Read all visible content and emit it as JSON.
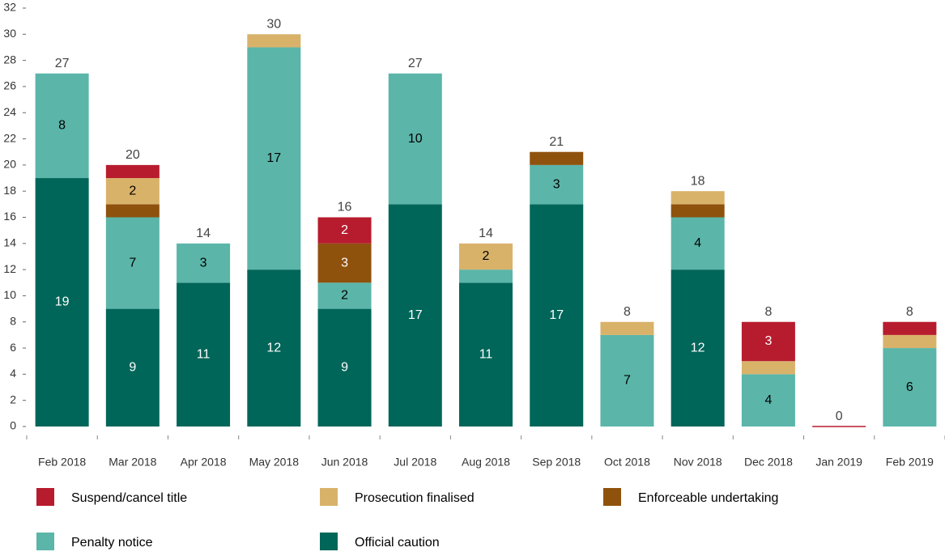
{
  "chart_data": {
    "type": "stacked-bar",
    "categories": [
      "Feb 2018",
      "Mar 2018",
      "Apr 2018",
      "May 2018",
      "Jun 2018",
      "Jul 2018",
      "Aug 2018",
      "Sep 2018",
      "Oct 2018",
      "Nov 2018",
      "Dec 2018",
      "Jan 2019",
      "Feb 2019"
    ],
    "series": [
      {
        "name": "Official caution",
        "color": "#006659",
        "values": [
          19,
          9,
          11,
          12,
          9,
          17,
          11,
          17,
          0,
          12,
          0,
          0,
          0
        ]
      },
      {
        "name": "Penalty notice",
        "color": "#5bb5a9",
        "values": [
          8,
          7,
          3,
          17,
          2,
          10,
          1,
          3,
          7,
          4,
          4,
          0,
          6
        ]
      },
      {
        "name": "Enforceable undertaking",
        "color": "#8f520d",
        "values": [
          0,
          1,
          0,
          0,
          3,
          0,
          0,
          1,
          0,
          1,
          0,
          0,
          0
        ]
      },
      {
        "name": "Prosecution finalised",
        "color": "#d9b26a",
        "values": [
          0,
          2,
          0,
          1,
          0,
          0,
          2,
          0,
          1,
          1,
          1,
          0,
          1
        ]
      },
      {
        "name": "Suspend/cancel title",
        "color": "#b71c2e",
        "values": [
          0,
          1,
          0,
          0,
          2,
          0,
          0,
          0,
          0,
          0,
          3,
          0,
          1
        ]
      }
    ],
    "totals": [
      27,
      20,
      14,
      30,
      16,
      27,
      14,
      21,
      8,
      18,
      8,
      0,
      8
    ],
    "ylim": [
      0,
      32
    ],
    "yticks": [
      0,
      2,
      4,
      6,
      8,
      10,
      12,
      14,
      16,
      18,
      20,
      22,
      24,
      26,
      28,
      30,
      32
    ]
  }
}
